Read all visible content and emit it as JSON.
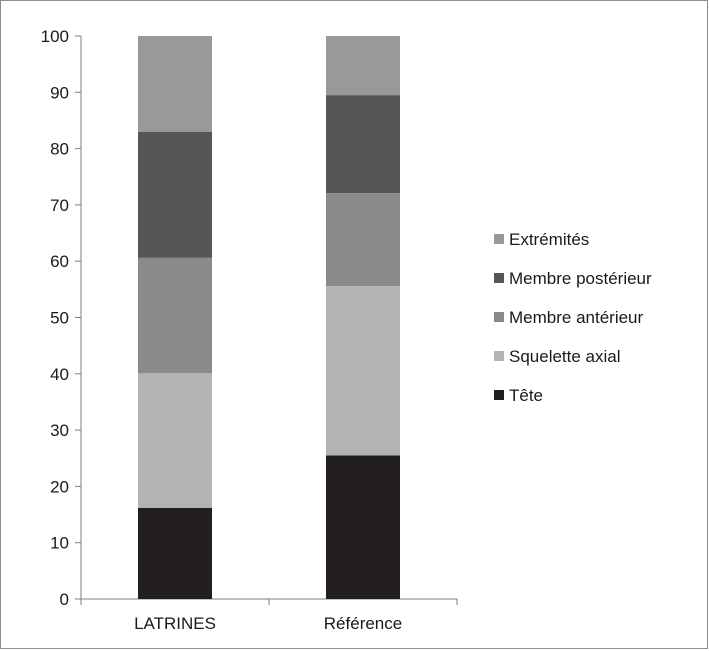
{
  "chart_data": {
    "type": "bar",
    "stacked": true,
    "title": "",
    "xlabel": "",
    "ylabel": "",
    "ylim": [
      0,
      100
    ],
    "yticks": [
      0,
      10,
      20,
      30,
      40,
      50,
      60,
      70,
      80,
      90,
      100
    ],
    "grid": false,
    "legend_position": "right",
    "categories": [
      "LATRINES",
      "Référence"
    ],
    "series": [
      {
        "name": "Tête",
        "color": "#231f20",
        "values": [
          16.2,
          25.5
        ]
      },
      {
        "name": "Squelette axial",
        "color": "#b3b3b5",
        "values": [
          23.9,
          30.1
        ]
      },
      {
        "name": "Membre antérieur",
        "color": "#8a8a8c",
        "values": [
          20.5,
          16.5
        ]
      },
      {
        "name": "Membre postérieur",
        "color": "#565657",
        "values": [
          22.4,
          17.4
        ]
      },
      {
        "name": "Extrémités",
        "color": "#99999b",
        "values": [
          17.0,
          10.5
        ]
      }
    ]
  }
}
